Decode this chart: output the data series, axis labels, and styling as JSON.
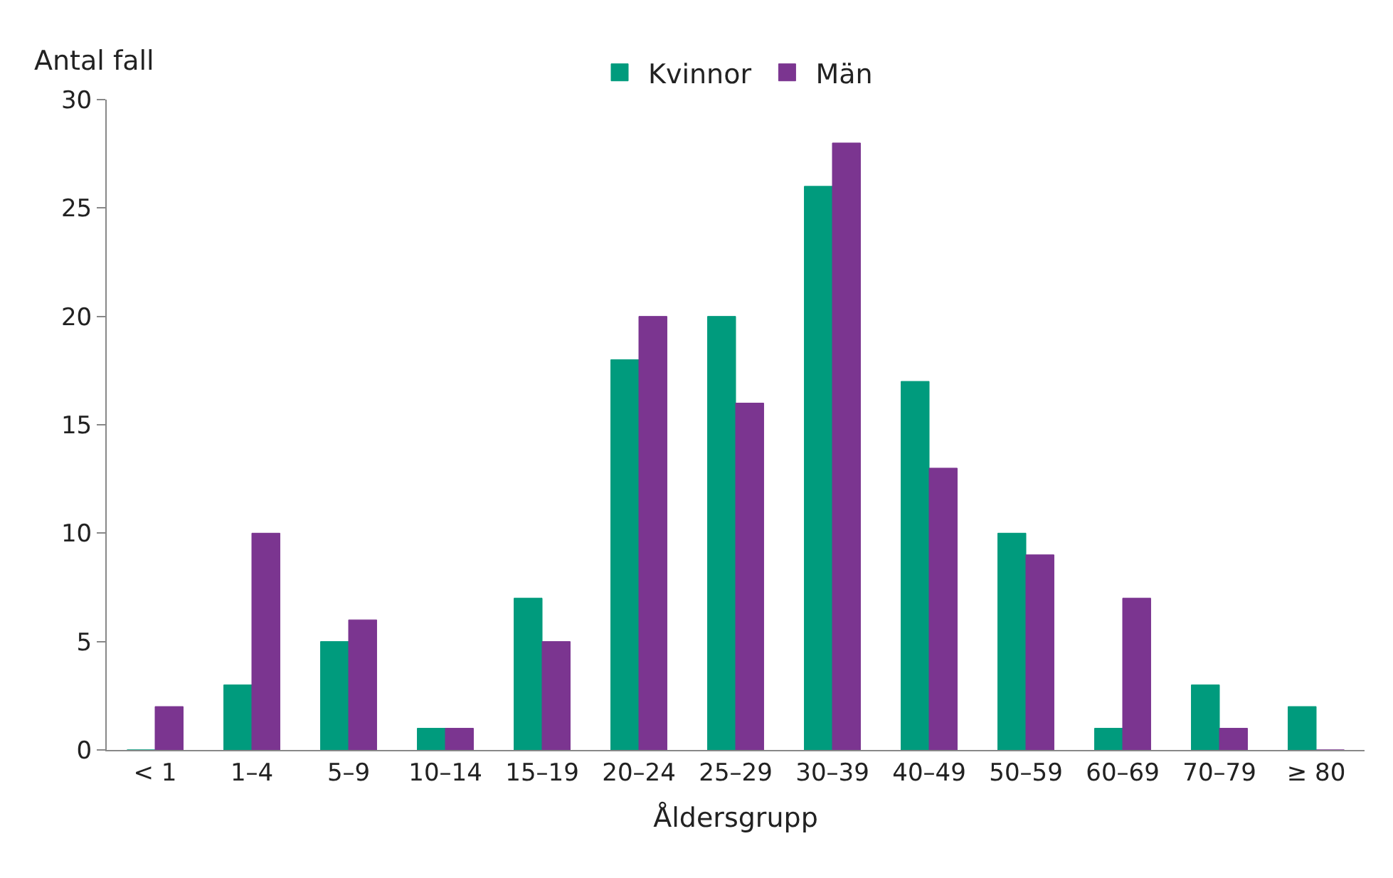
{
  "chart_data": {
    "type": "bar",
    "ylabel": "Antal fall",
    "xlabel": "Åldersgrupp",
    "categories": [
      "< 1",
      "1–4",
      "5–9",
      "10–14",
      "15–19",
      "20–24",
      "25–29",
      "30–39",
      "40–49",
      "50–59",
      "60–69",
      "70–79",
      "≥ 80"
    ],
    "series": [
      {
        "name": "Kvinnor",
        "color": "#009b7d",
        "values": [
          0,
          3,
          5,
          1,
          7,
          18,
          20,
          26,
          17,
          10,
          1,
          3,
          2
        ]
      },
      {
        "name": "Män",
        "color": "#7b3590",
        "values": [
          2,
          10,
          6,
          1,
          5,
          20,
          16,
          28,
          13,
          9,
          7,
          1,
          0
        ]
      }
    ],
    "ylim": [
      0,
      30
    ],
    "yticks": [
      0,
      5,
      10,
      15,
      20,
      25,
      30
    ],
    "legend": "top"
  }
}
